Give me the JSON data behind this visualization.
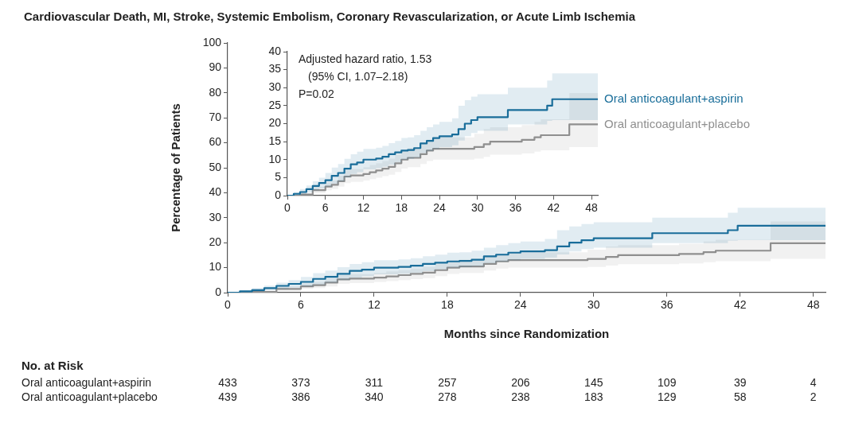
{
  "chart_data": [
    {
      "type": "step",
      "title": "Cardiovascular Death, MI, Stroke, Systemic Embolism, Coronary Revascularization, or Acute Limb Ischemia",
      "xlabel": "Months since Randomization",
      "ylabel": "Percentage of Patients",
      "xlim": [
        0,
        49
      ],
      "xticks": [
        0,
        6,
        12,
        18,
        24,
        30,
        36,
        42,
        48
      ],
      "ylim": [
        0,
        100
      ],
      "yticks": [
        0,
        10,
        20,
        30,
        40,
        50,
        60,
        70,
        80,
        90,
        100
      ],
      "grid": false,
      "annotations": [
        "No. at Risk",
        "Oral anticoagulant+aspirin",
        "433",
        "373",
        "311",
        "257",
        "206",
        "145",
        "109",
        "39",
        "4",
        "Oral anticoagulant+placebo",
        "439",
        "386",
        "340",
        "278",
        "238",
        "183",
        "129",
        "58",
        "2"
      ],
      "series": [
        {
          "color": "#1a6e9a",
          "x": [
            0,
            1,
            2,
            3,
            4,
            5,
            6,
            7,
            8,
            9,
            10,
            11,
            12,
            14,
            15,
            16,
            17,
            18,
            19,
            20,
            21,
            22,
            23,
            24,
            26,
            27,
            28,
            29,
            30,
            34.8,
            41,
            41.8,
            49
          ],
          "values": [
            0,
            0.5,
            1,
            1.8,
            2.7,
            3.5,
            4.3,
            5.5,
            6.3,
            7.5,
            8.7,
            9.2,
            10,
            10.3,
            10.8,
            11.5,
            12,
            12.5,
            12.7,
            13.2,
            14.5,
            15.2,
            16,
            16.5,
            17,
            18.5,
            20,
            21,
            21.8,
            23.8,
            25,
            26.8,
            26.8
          ],
          "lower": [
            0,
            0.1,
            0.4,
            0.9,
            1.5,
            2,
            2.5,
            3.3,
            4,
            5,
            6,
            6.5,
            7.3,
            7.6,
            8,
            8.6,
            9.3,
            10,
            10.2,
            10.6,
            11.8,
            12.4,
            13,
            13.5,
            14,
            15.3,
            16.5,
            17.4,
            18,
            19.8,
            20.8,
            21,
            21
          ],
          "upper": [
            0,
            1,
            1.8,
            2.8,
            4,
            5,
            6.3,
            7.8,
            8.8,
            10.2,
            11.5,
            12.2,
            13,
            13.3,
            13.8,
            14.6,
            15.2,
            16,
            16.2,
            16.8,
            18,
            19,
            19.8,
            20.5,
            21.5,
            25,
            26.5,
            27.5,
            28.2,
            30,
            32,
            34,
            34
          ]
        },
        {
          "color": "#8f8f8f",
          "x": [
            0,
            2,
            4,
            6,
            7,
            8,
            9,
            10,
            12,
            13,
            14,
            15,
            16,
            17,
            18,
            19,
            21,
            22,
            23,
            29.5,
            31,
            32,
            37,
            39,
            40,
            44.5,
            49
          ],
          "values": [
            0,
            0.3,
            1.5,
            2.5,
            3,
            4,
            5.3,
            5.6,
            6,
            6.5,
            7,
            7.5,
            8,
            9,
            10,
            10.5,
            11.5,
            12.5,
            13,
            13.5,
            14.3,
            15,
            15.5,
            16.2,
            16.8,
            19.8,
            19.8
          ],
          "lower": [
            0,
            0,
            0.7,
            1.5,
            1.8,
            2.5,
            3.5,
            3.8,
            4.2,
            4.6,
            5,
            5.4,
            5.8,
            6.6,
            7.5,
            7.9,
            8.8,
            9.6,
            10,
            10.3,
            10.8,
            11.4,
            11.7,
            12.2,
            12.6,
            13.5,
            13.5
          ],
          "upper": [
            0,
            0.8,
            2.5,
            3.7,
            4.2,
            5.5,
            7,
            7.4,
            7.9,
            8.5,
            9,
            9.6,
            10.3,
            11.4,
            12.6,
            13.2,
            14.3,
            15.5,
            16.2,
            17.2,
            18.5,
            19,
            19.6,
            20.5,
            21.2,
            28.5,
            28.5
          ]
        }
      ]
    },
    {
      "type": "step",
      "xlim": [
        0,
        49
      ],
      "xticks": [
        0,
        6,
        12,
        18,
        24,
        30,
        36,
        42,
        48
      ],
      "ylim": [
        0,
        40
      ],
      "yticks": [
        0,
        5,
        10,
        15,
        20,
        25,
        30,
        35,
        40
      ],
      "grid": false,
      "annotations": [
        "Adjusted hazard ratio, 1.53",
        "(95% CI, 1.07–2.18)",
        "P=0.02"
      ],
      "series": [
        {
          "name": "Oral anticoagulant+aspirin",
          "color": "#1a6e9a",
          "x": [
            0,
            1,
            2,
            3,
            4,
            5,
            6,
            7,
            8,
            9,
            10,
            11,
            12,
            14,
            15,
            16,
            17,
            18,
            19,
            20,
            21,
            22,
            23,
            24,
            26,
            27,
            28,
            29,
            30,
            34.8,
            41,
            41.8,
            49
          ],
          "values": [
            0,
            0.5,
            1,
            1.8,
            2.7,
            3.5,
            4.3,
            5.5,
            6.3,
            7.5,
            8.7,
            9.2,
            10,
            10.3,
            10.8,
            11.5,
            12,
            12.5,
            12.7,
            13.2,
            14.5,
            15.2,
            16,
            16.5,
            17,
            18.5,
            20,
            21,
            21.8,
            23.8,
            25,
            26.8,
            26.8
          ],
          "lower": [
            0,
            0.1,
            0.4,
            0.9,
            1.5,
            2,
            2.5,
            3.3,
            4,
            5,
            6,
            6.5,
            7.3,
            7.6,
            8,
            8.6,
            9.3,
            10,
            10.2,
            10.6,
            11.8,
            12.4,
            13,
            13.5,
            14,
            15.3,
            16.5,
            17.4,
            18,
            19.8,
            20.8,
            21,
            21
          ],
          "upper": [
            0,
            1,
            1.8,
            2.8,
            4,
            5,
            6.3,
            7.8,
            8.8,
            10.2,
            11.5,
            12.2,
            13,
            13.3,
            13.8,
            14.6,
            15.2,
            16,
            16.2,
            16.8,
            18,
            19,
            19.8,
            20.5,
            21.5,
            25,
            26.5,
            27.5,
            28.2,
            30,
            32,
            34,
            34
          ]
        },
        {
          "name": "Oral anticoagulant+placebo",
          "color": "#8f8f8f",
          "x": [
            0,
            2,
            4,
            6,
            7,
            8,
            9,
            10,
            12,
            13,
            14,
            15,
            16,
            17,
            18,
            19,
            21,
            22,
            23,
            29.5,
            31,
            32,
            37,
            39,
            40,
            44.5,
            49
          ],
          "values": [
            0,
            0.3,
            1.5,
            2.5,
            3,
            4,
            5.3,
            5.6,
            6,
            6.5,
            7,
            7.5,
            8,
            9,
            10,
            10.5,
            11.5,
            12.5,
            13,
            13.5,
            14.3,
            15,
            15.5,
            16.2,
            16.8,
            19.8,
            19.8
          ],
          "lower": [
            0,
            0,
            0.7,
            1.5,
            1.8,
            2.5,
            3.5,
            3.8,
            4.2,
            4.6,
            5,
            5.4,
            5.8,
            6.6,
            7.5,
            7.9,
            8.8,
            9.6,
            10,
            10.3,
            10.8,
            11.4,
            11.7,
            12.2,
            12.6,
            13.5,
            13.5
          ],
          "upper": [
            0,
            0.8,
            2.5,
            3.7,
            4.2,
            5.5,
            7,
            7.4,
            7.9,
            8.5,
            9,
            9.6,
            10.3,
            11.4,
            12.6,
            13.2,
            14.3,
            15.5,
            16.2,
            17.2,
            18.5,
            19,
            19.6,
            20.5,
            21.2,
            28.5,
            28.5
          ]
        }
      ]
    }
  ]
}
